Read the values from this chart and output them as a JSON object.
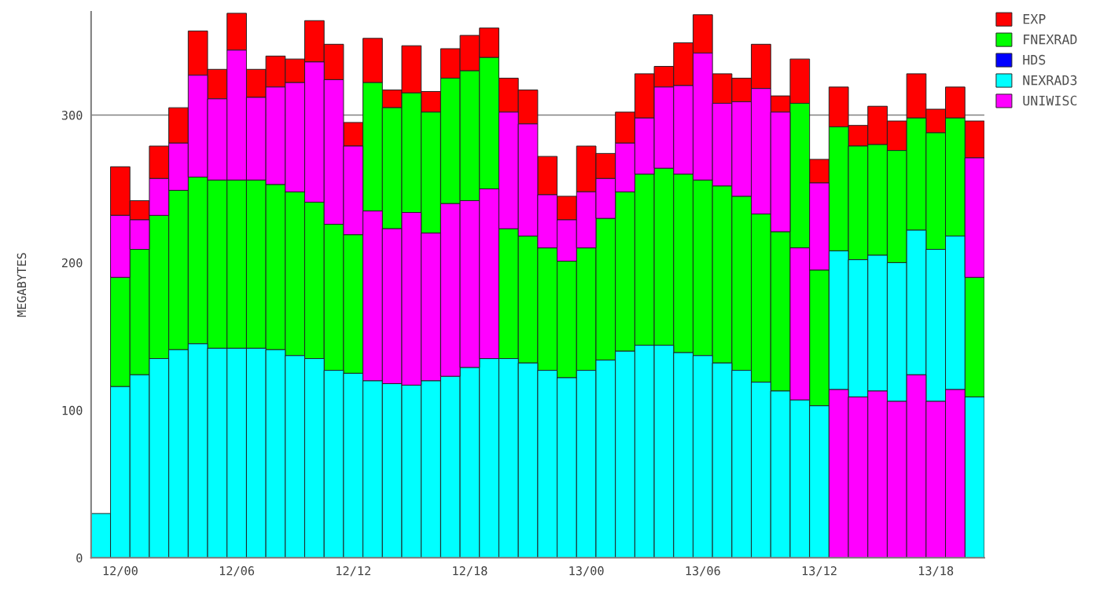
{
  "chart_data": {
    "type": "bar",
    "ylabel": "MEGABYTES",
    "categories": [
      null,
      "12/00",
      null,
      null,
      null,
      null,
      null,
      "12/06",
      null,
      null,
      null,
      null,
      null,
      "12/12",
      null,
      null,
      null,
      null,
      null,
      "12/18",
      null,
      null,
      null,
      null,
      null,
      "13/00",
      null,
      null,
      null,
      null,
      null,
      "13/06",
      null,
      null,
      null,
      null,
      null,
      "13/12",
      null,
      null,
      null,
      null,
      null,
      "13/18",
      null,
      null
    ],
    "ylim": [
      0,
      370
    ],
    "yticks": [
      0,
      100,
      200,
      300
    ],
    "ref_lines": [
      {
        "axis": "y",
        "value": 300,
        "color": "#808080"
      }
    ],
    "legend": "top right",
    "grid": false,
    "series": [
      {
        "name": "EXP",
        "color": "#ff0000",
        "values": [
          null,
          33,
          13,
          22,
          24,
          30,
          20,
          25,
          19,
          21,
          16,
          28,
          24,
          16,
          30,
          12,
          32,
          14,
          20,
          24,
          20,
          23,
          23,
          26,
          16,
          31,
          17,
          21,
          30,
          14,
          29,
          26,
          20,
          16,
          30,
          11,
          30,
          16,
          27,
          14,
          26,
          20,
          30,
          16,
          21,
          25
        ],
        "base": [
          null,
          232,
          229,
          257,
          281,
          327,
          311,
          344,
          312,
          319,
          322,
          336,
          324,
          279,
          322,
          305,
          315,
          302,
          325,
          330,
          339,
          302,
          294,
          246,
          229,
          248,
          257,
          281,
          298,
          319,
          320,
          342,
          308,
          309,
          318,
          302,
          308,
          254,
          292,
          279,
          280,
          276,
          298,
          288,
          298,
          271
        ]
      },
      {
        "name": "FNEXRAD",
        "color": "#00ff00",
        "values": [
          null,
          74,
          85,
          97,
          108,
          113,
          114,
          114,
          114,
          112,
          111,
          106,
          99,
          94,
          87,
          82,
          81,
          82,
          85,
          88,
          89,
          88,
          86,
          83,
          79,
          83,
          96,
          108,
          116,
          120,
          121,
          119,
          120,
          118,
          114,
          108,
          98,
          92,
          84,
          77,
          75,
          76,
          76,
          79,
          80,
          81
        ],
        "base": [
          null,
          116,
          124,
          135,
          141,
          145,
          142,
          142,
          142,
          141,
          137,
          135,
          127,
          125,
          235,
          223,
          234,
          220,
          240,
          242,
          250,
          135,
          132,
          127,
          122,
          127,
          134,
          140,
          144,
          144,
          139,
          137,
          132,
          127,
          119,
          113,
          210,
          103,
          208,
          202,
          205,
          200,
          222,
          209,
          218,
          109
        ]
      },
      {
        "name": "HDS",
        "color": "#0000ff",
        "values": [
          null,
          null,
          null,
          null,
          null,
          null,
          null,
          null,
          null,
          null,
          null,
          null,
          null,
          null,
          null,
          null,
          null,
          null,
          null,
          null,
          null,
          null,
          null,
          null,
          null,
          null,
          null,
          null,
          null,
          null,
          null,
          null,
          null,
          null,
          null,
          null,
          null,
          null,
          null,
          null,
          null,
          null,
          null,
          null,
          null,
          null
        ]
      },
      {
        "name": "NEXRAD3",
        "color": "#00ffff",
        "values": [
          30,
          116,
          124,
          135,
          141,
          145,
          142,
          142,
          142,
          141,
          137,
          135,
          127,
          125,
          120,
          118,
          117,
          120,
          123,
          129,
          135,
          135,
          132,
          127,
          122,
          127,
          134,
          140,
          144,
          144,
          139,
          137,
          132,
          127,
          119,
          113,
          107,
          103,
          94,
          93,
          92,
          94,
          98,
          103,
          104,
          109
        ],
        "base": [
          0,
          0,
          0,
          0,
          0,
          0,
          0,
          0,
          0,
          0,
          0,
          0,
          0,
          0,
          0,
          0,
          0,
          0,
          0,
          0,
          0,
          0,
          0,
          0,
          0,
          0,
          0,
          0,
          0,
          0,
          0,
          0,
          0,
          0,
          0,
          0,
          0,
          0,
          114,
          109,
          113,
          106,
          124,
          106,
          114,
          0
        ]
      },
      {
        "name": "UNIWISC",
        "color": "#ff00ff",
        "values": [
          null,
          42,
          20,
          25,
          32,
          69,
          55,
          88,
          56,
          66,
          74,
          95,
          98,
          60,
          115,
          105,
          117,
          100,
          117,
          113,
          115,
          79,
          76,
          36,
          28,
          38,
          27,
          33,
          38,
          55,
          60,
          86,
          56,
          64,
          85,
          81,
          103,
          59,
          114,
          109,
          113,
          106,
          124,
          106,
          114,
          81
        ],
        "base": [
          null,
          190,
          209,
          232,
          249,
          258,
          256,
          256,
          256,
          253,
          248,
          241,
          226,
          219,
          120,
          118,
          117,
          120,
          123,
          129,
          135,
          223,
          218,
          210,
          201,
          210,
          230,
          248,
          260,
          264,
          260,
          256,
          252,
          245,
          233,
          221,
          107,
          195,
          0,
          0,
          0,
          0,
          0,
          0,
          0,
          190
        ]
      }
    ]
  }
}
